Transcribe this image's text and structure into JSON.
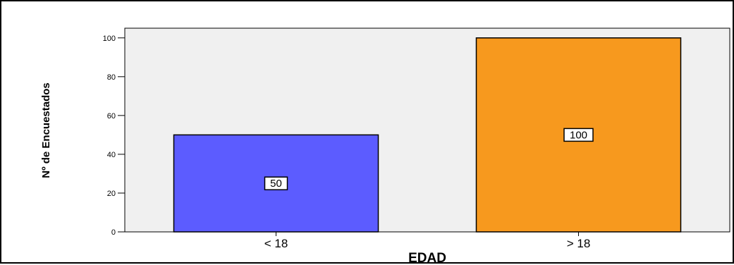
{
  "chart_data": {
    "type": "bar",
    "categories": [
      "< 18",
      "> 18"
    ],
    "values": [
      50,
      100
    ],
    "data_labels": [
      "50",
      "100"
    ],
    "bar_colors": [
      "#5c5cff",
      "#f7991e"
    ],
    "plot_background": "#f0f0f0",
    "xlabel": "EDAD",
    "ylabel": "Nº de Encuestados",
    "ylim": [
      0,
      105
    ],
    "yticks": [
      0,
      20,
      40,
      60,
      80,
      100
    ],
    "grid": false,
    "legend": "none"
  }
}
